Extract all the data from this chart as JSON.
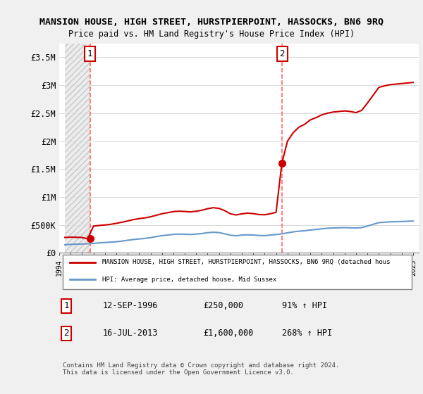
{
  "title": "MANSION HOUSE, HIGH STREET, HURSTPIERPOINT, HASSOCKS, BN6 9RQ",
  "subtitle": "Price paid vs. HM Land Registry's House Price Index (HPI)",
  "background_color": "#f0f0f0",
  "plot_bg_color": "#ffffff",
  "hatch_color": "#d0d0d0",
  "ylim": [
    0,
    3750000
  ],
  "yticks": [
    0,
    500000,
    1000000,
    1500000,
    2000000,
    2500000,
    3000000,
    3500000
  ],
  "ytick_labels": [
    "£0",
    "£500K",
    "£1M",
    "£1.5M",
    "£2M",
    "£2.5M",
    "£3M",
    "£3.5M"
  ],
  "xstart": 1994.5,
  "xend": 2025.5,
  "xticks": [
    1994,
    1995,
    1996,
    1997,
    1998,
    1999,
    2000,
    2001,
    2002,
    2003,
    2004,
    2005,
    2006,
    2007,
    2008,
    2009,
    2010,
    2011,
    2012,
    2013,
    2014,
    2015,
    2016,
    2017,
    2018,
    2019,
    2020,
    2021,
    2022,
    2023,
    2024,
    2025
  ],
  "purchase1_x": 1996.7,
  "purchase1_y": 250000,
  "purchase2_x": 2013.54,
  "purchase2_y": 1600000,
  "hpi_color": "#6699cc",
  "price_color": "#cc0000",
  "marker_color": "#cc0000",
  "vline_color": "#ff6666",
  "legend_label_price": "MANSION HOUSE, HIGH STREET, HURSTPIERPOINT, HASSOCKS, BN6 9RQ (detached hous",
  "legend_label_hpi": "HPI: Average price, detached house, Mid Sussex",
  "annotation1_label": "1",
  "annotation2_label": "2",
  "table_row1": [
    "1",
    "12-SEP-1996",
    "£250,000",
    "91% ↑ HPI"
  ],
  "table_row2": [
    "2",
    "16-JUL-2013",
    "£1,600,000",
    "268% ↑ HPI"
  ],
  "footer": "Contains HM Land Registry data © Crown copyright and database right 2024.\nThis data is licensed under the Open Government Licence v3.0.",
  "hpi_data_x": [
    1994.5,
    1995,
    1995.5,
    1996,
    1996.5,
    1997,
    1997.5,
    1998,
    1998.5,
    1999,
    1999.5,
    2000,
    2000.5,
    2001,
    2001.5,
    2002,
    2002.5,
    2003,
    2003.5,
    2004,
    2004.5,
    2005,
    2005.5,
    2006,
    2006.5,
    2007,
    2007.5,
    2008,
    2008.5,
    2009,
    2009.5,
    2010,
    2010.5,
    2011,
    2011.5,
    2012,
    2012.5,
    2013,
    2013.5,
    2014,
    2014.5,
    2015,
    2015.5,
    2016,
    2016.5,
    2017,
    2017.5,
    2018,
    2018.5,
    2019,
    2019.5,
    2020,
    2020.5,
    2021,
    2021.5,
    2022,
    2022.5,
    2023,
    2023.5,
    2024,
    2024.5,
    2025
  ],
  "hpi_data_y": [
    145000,
    150000,
    155000,
    158000,
    162000,
    168000,
    178000,
    185000,
    190000,
    198000,
    210000,
    225000,
    238000,
    248000,
    258000,
    272000,
    290000,
    308000,
    318000,
    330000,
    335000,
    332000,
    328000,
    335000,
    345000,
    360000,
    368000,
    362000,
    340000,
    315000,
    305000,
    318000,
    322000,
    318000,
    310000,
    308000,
    318000,
    328000,
    340000,
    358000,
    375000,
    388000,
    395000,
    408000,
    418000,
    430000,
    440000,
    445000,
    448000,
    450000,
    448000,
    445000,
    452000,
    478000,
    510000,
    540000,
    548000,
    555000,
    558000,
    560000,
    565000,
    570000
  ],
  "price_data_x": [
    1994.5,
    1995,
    1995.5,
    1996,
    1996.5,
    1997,
    1997.5,
    1998,
    1998.5,
    1999,
    1999.5,
    2000,
    2000.5,
    2001,
    2001.5,
    2002,
    2002.5,
    2003,
    2003.5,
    2004,
    2004.5,
    2005,
    2005.5,
    2006,
    2006.5,
    2007,
    2007.5,
    2008,
    2008.5,
    2009,
    2009.5,
    2010,
    2010.5,
    2011,
    2011.5,
    2012,
    2012.5,
    2013,
    2013.5,
    2014,
    2014.5,
    2015,
    2015.5,
    2016,
    2016.5,
    2017,
    2017.5,
    2018,
    2018.5,
    2019,
    2019.5,
    2020,
    2020.5,
    2021,
    2021.5,
    2022,
    2022.5,
    2023,
    2023.5,
    2024,
    2024.5,
    2025
  ],
  "price_data_y": [
    276000,
    280000,
    278000,
    275000,
    250000,
    478000,
    490000,
    498000,
    510000,
    528000,
    548000,
    570000,
    595000,
    612000,
    625000,
    645000,
    672000,
    700000,
    718000,
    738000,
    745000,
    740000,
    732000,
    745000,
    762000,
    790000,
    808000,
    795000,
    755000,
    698000,
    678000,
    698000,
    710000,
    702000,
    685000,
    681000,
    700000,
    725000,
    1600000,
    2000000,
    2150000,
    2250000,
    2300000,
    2380000,
    2420000,
    2470000,
    2500000,
    2520000,
    2530000,
    2540000,
    2530000,
    2510000,
    2550000,
    2680000,
    2820000,
    2960000,
    2990000,
    3010000,
    3020000,
    3030000,
    3040000,
    3050000
  ]
}
